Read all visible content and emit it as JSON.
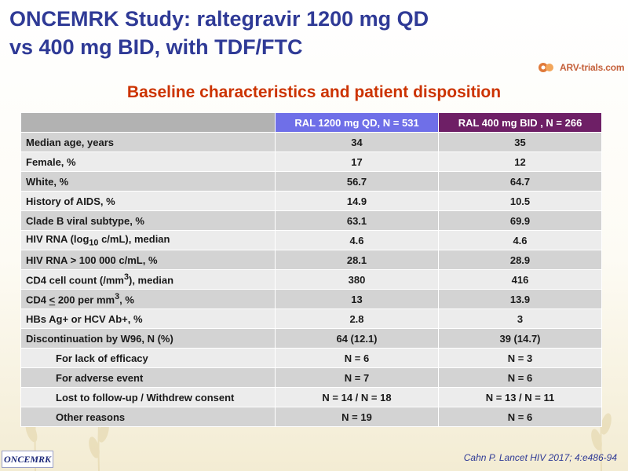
{
  "slide": {
    "title_line1": "ONCEMRK Study: raltegravir 1200 mg QD",
    "title_line2": "vs 400 mg BID, with TDF/FTC",
    "logo_text": "ARV-trials.com",
    "subtitle": "Baseline characteristics and patient disposition",
    "citation": "Cahn P. Lancet HIV 2017; 4:e486-94",
    "study_logo": "ONCEMRK"
  },
  "table": {
    "headers": [
      "",
      "RAL 1200 mg QD, N = 531",
      "RAL 400 mg BID , N = 266"
    ],
    "rows": [
      {
        "label": "Median age, years",
        "a": "34",
        "b": "35"
      },
      {
        "label": "Female, %",
        "a": "17",
        "b": "12"
      },
      {
        "label": "White, %",
        "a": "56.7",
        "b": "64.7"
      },
      {
        "label": "History of AIDS, %",
        "a": "14.9",
        "b": "10.5"
      },
      {
        "label": "Clade B viral subtype, %",
        "a": "63.1",
        "b": "69.9"
      },
      {
        "label_pre": "HIV RNA (log",
        "label_sub": "10",
        "label_post": " c/mL), median",
        "a": "4.6",
        "b": "4.6"
      },
      {
        "label": "HIV RNA > 100 000 c/mL, %",
        "a": "28.1",
        "b": "28.9"
      },
      {
        "label_pre": "CD4 cell count (/mm",
        "label_sup": "3",
        "label_post": "), median",
        "a": "380",
        "b": "416"
      },
      {
        "label_pre": "CD4 ",
        "label_u": "<",
        "label_mid": " 200 per mm",
        "label_sup": "3",
        "label_post": ", %",
        "a": "13",
        "b": "13.9"
      },
      {
        "label": "HBs Ag+ or HCV Ab+, %",
        "a": "2.8",
        "b": "3"
      },
      {
        "label": "Discontinuation by W96, N (%)",
        "a": "64 (12.1)",
        "b": "39 (14.7)"
      },
      {
        "label": "For lack of efficacy",
        "a": "N = 6",
        "b": "N = 3"
      },
      {
        "label": "For adverse event",
        "a": "N = 7",
        "b": "N = 6"
      },
      {
        "label": "Lost to follow-up / Withdrew consent",
        "a": "N = 14 / N = 18",
        "b": "N = 13 / N = 11"
      },
      {
        "label": "Other reasons",
        "a": "N = 19",
        "b": "N = 6"
      }
    ]
  },
  "colors": {
    "title": "#2f3a96",
    "subtitle": "#cc3300",
    "header_a": "#6f6fe8",
    "header_b": "#6e1f66",
    "row_dark": "#d3d3d3",
    "row_light": "#ececec"
  },
  "icons": [
    "wheat-background-icon",
    "arv-trials-logo-icon"
  ]
}
